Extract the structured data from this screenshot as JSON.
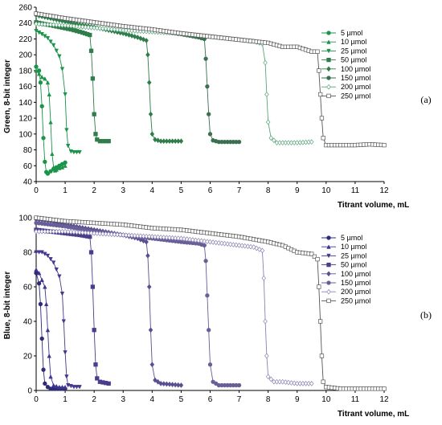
{
  "chart_data": [
    {
      "type": "line",
      "panel_label": "(a)",
      "ylabel": "Green, 8-bit integer",
      "xlabel": "Titrant volume, mL",
      "xlim": [
        0,
        12
      ],
      "ylim": [
        40,
        260
      ],
      "xticks": [
        "0",
        "1",
        "2",
        "3",
        "4",
        "5",
        "6",
        "7",
        "8",
        "9",
        "10",
        "11",
        "12"
      ],
      "yticks": [
        "40",
        "60",
        "80",
        "100",
        "120",
        "140",
        "160",
        "180",
        "200",
        "220",
        "240",
        "260"
      ],
      "legend_position": "right",
      "series": [
        {
          "name": "5 µmol",
          "color": "#1a9448",
          "marker": "circle-filled",
          "points": [
            [
              0,
              185
            ],
            [
              0.1,
              180
            ],
            [
              0.15,
              165
            ],
            [
              0.2,
              135
            ],
            [
              0.25,
              95
            ],
            [
              0.3,
              65
            ],
            [
              0.35,
              52
            ],
            [
              0.4,
              50
            ],
            [
              0.5,
              53
            ],
            [
              0.6,
              56
            ],
            [
              0.7,
              58
            ],
            [
              0.8,
              60
            ],
            [
              0.9,
              62
            ],
            [
              1.0,
              64
            ]
          ]
        },
        {
          "name": "10 µmol",
          "color": "#1a9448",
          "marker": "triangle-filled",
          "points": [
            [
              0,
              180
            ],
            [
              0.1,
              176
            ],
            [
              0.2,
              172
            ],
            [
              0.3,
              170
            ],
            [
              0.4,
              165
            ],
            [
              0.45,
              150
            ],
            [
              0.5,
              115
            ],
            [
              0.55,
              75
            ],
            [
              0.6,
              58
            ],
            [
              0.65,
              54
            ],
            [
              0.7,
              55
            ],
            [
              0.8,
              57
            ],
            [
              0.9,
              58
            ],
            [
              1.0,
              60
            ]
          ]
        },
        {
          "name": "25 µmol",
          "color": "#1a9448",
          "marker": "triangle-down-filled",
          "points": [
            [
              0,
              230
            ],
            [
              0.2,
              226
            ],
            [
              0.4,
              221
            ],
            [
              0.6,
              212
            ],
            [
              0.8,
              198
            ],
            [
              0.9,
              182
            ],
            [
              1.0,
              150
            ],
            [
              1.05,
              105
            ],
            [
              1.1,
              85
            ],
            [
              1.2,
              78
            ],
            [
              1.3,
              77
            ],
            [
              1.5,
              77
            ]
          ]
        },
        {
          "name": "50 µmol",
          "color": "#2e7d4a",
          "marker": "square-filled",
          "points": [
            [
              0,
              241
            ],
            [
              0.4,
              238
            ],
            [
              0.8,
              235
            ],
            [
              1.2,
              232
            ],
            [
              1.6,
              228
            ],
            [
              1.85,
              225
            ],
            [
              1.9,
              205
            ],
            [
              1.95,
              170
            ],
            [
              2.0,
              125
            ],
            [
              2.05,
              100
            ],
            [
              2.1,
              93
            ],
            [
              2.2,
              91
            ],
            [
              2.5,
              91
            ]
          ]
        },
        {
          "name": "100 µmol",
          "color": "#2e7d4a",
          "marker": "diamond-filled",
          "points": [
            [
              0,
              250
            ],
            [
              0.5,
              246
            ],
            [
              1,
              242
            ],
            [
              1.5,
              238
            ],
            [
              2,
              235
            ],
            [
              2.5,
              231
            ],
            [
              3,
              227
            ],
            [
              3.5,
              222
            ],
            [
              3.8,
              218
            ],
            [
              3.85,
              200
            ],
            [
              3.9,
              165
            ],
            [
              3.95,
              125
            ],
            [
              4.0,
              100
            ],
            [
              4.1,
              93
            ],
            [
              4.3,
              91
            ],
            [
              5,
              91
            ]
          ]
        },
        {
          "name": "150 µmol",
          "color": "#3a6f50",
          "marker": "circle-filled",
          "points": [
            [
              0,
              252
            ],
            [
              0.5,
              249
            ],
            [
              1,
              246
            ],
            [
              2,
              241
            ],
            [
              3,
              236
            ],
            [
              4,
              231
            ],
            [
              5,
              226
            ],
            [
              5.6,
              222
            ],
            [
              5.8,
              220
            ],
            [
              5.85,
              195
            ],
            [
              5.9,
              160
            ],
            [
              5.95,
              125
            ],
            [
              6.0,
              100
            ],
            [
              6.1,
              92
            ],
            [
              6.3,
              90
            ],
            [
              7,
              90
            ]
          ]
        },
        {
          "name": "200 µmol",
          "color": "#5aa47a",
          "marker": "diamond-open",
          "points": [
            [
              0,
              239
            ],
            [
              1,
              237
            ],
            [
              2,
              234
            ],
            [
              3,
              231
            ],
            [
              4,
              229
            ],
            [
              5,
              227
            ],
            [
              6,
              223
            ],
            [
              6.5,
              221
            ],
            [
              7,
              219
            ],
            [
              7.5,
              217
            ],
            [
              7.8,
              214
            ],
            [
              7.9,
              190
            ],
            [
              7.95,
              150
            ],
            [
              8.0,
              115
            ],
            [
              8.1,
              95
            ],
            [
              8.3,
              89
            ],
            [
              9,
              89
            ],
            [
              9.5,
              90
            ]
          ]
        },
        {
          "name": "250 µmol",
          "color": "#555555",
          "marker": "square-open",
          "points": [
            [
              0,
              252
            ],
            [
              0.5,
              249
            ],
            [
              1,
              246
            ],
            [
              2,
              241
            ],
            [
              3,
              236
            ],
            [
              4,
              232
            ],
            [
              5,
              227
            ],
            [
              6,
              223
            ],
            [
              7,
              219
            ],
            [
              8,
              215
            ],
            [
              8.5,
              210
            ],
            [
              9,
              210
            ],
            [
              9.5,
              204
            ],
            [
              9.7,
              204
            ],
            [
              9.75,
              180
            ],
            [
              9.8,
              150
            ],
            [
              9.85,
              120
            ],
            [
              9.9,
              95
            ],
            [
              10,
              86
            ],
            [
              10.5,
              86
            ],
            [
              11,
              86
            ],
            [
              11.5,
              87
            ],
            [
              12,
              86
            ]
          ]
        }
      ]
    },
    {
      "type": "line",
      "panel_label": "(b)",
      "ylabel": "Blue, 8-bit integer",
      "xlabel": "Titrant volume, mL",
      "xlim": [
        0,
        12
      ],
      "ylim": [
        0,
        100
      ],
      "xticks": [
        "0",
        "1",
        "2",
        "3",
        "4",
        "5",
        "6",
        "7",
        "8",
        "9",
        "10",
        "11",
        "12"
      ],
      "yticks": [
        "0",
        "20",
        "40",
        "60",
        "80",
        "100"
      ],
      "legend_position": "right",
      "series": [
        {
          "name": "5 µmol",
          "color": "#2e2a78",
          "marker": "circle-filled",
          "points": [
            [
              0,
              68
            ],
            [
              0.1,
              62
            ],
            [
              0.15,
              50
            ],
            [
              0.2,
              30
            ],
            [
              0.25,
              12
            ],
            [
              0.3,
              4
            ],
            [
              0.4,
              2
            ],
            [
              0.5,
              1
            ],
            [
              0.6,
              1
            ],
            [
              0.8,
              1
            ],
            [
              1.0,
              1
            ]
          ]
        },
        {
          "name": "10 µmol",
          "color": "#3d3590",
          "marker": "triangle-filled",
          "points": [
            [
              0,
              70
            ],
            [
              0.1,
              68
            ],
            [
              0.2,
              64
            ],
            [
              0.3,
              60
            ],
            [
              0.35,
              50
            ],
            [
              0.4,
              35
            ],
            [
              0.45,
              20
            ],
            [
              0.5,
              8
            ],
            [
              0.6,
              3
            ],
            [
              0.8,
              2
            ],
            [
              1.0,
              2
            ]
          ]
        },
        {
          "name": "25 µmol",
          "color": "#45398f",
          "marker": "triangle-down-filled",
          "points": [
            [
              0,
              80
            ],
            [
              0.2,
              80
            ],
            [
              0.4,
              78
            ],
            [
              0.6,
              74
            ],
            [
              0.8,
              66
            ],
            [
              0.9,
              56
            ],
            [
              0.95,
              40
            ],
            [
              1.0,
              22
            ],
            [
              1.05,
              8
            ],
            [
              1.1,
              3
            ],
            [
              1.3,
              2
            ],
            [
              1.5,
              2
            ]
          ]
        },
        {
          "name": "50 µmol",
          "color": "#4a3d8a",
          "marker": "square-filled",
          "points": [
            [
              0,
              93
            ],
            [
              0.5,
              92
            ],
            [
              1,
              91
            ],
            [
              1.5,
              90
            ],
            [
              1.85,
              89
            ],
            [
              1.9,
              80
            ],
            [
              1.95,
              60
            ],
            [
              2.0,
              35
            ],
            [
              2.05,
              15
            ],
            [
              2.1,
              7
            ],
            [
              2.2,
              5
            ],
            [
              2.5,
              4
            ]
          ]
        },
        {
          "name": "100 µmol",
          "color": "#5a4e92",
          "marker": "diamond-filled",
          "points": [
            [
              0,
              99
            ],
            [
              0.5,
              98
            ],
            [
              1,
              96
            ],
            [
              2,
              93
            ],
            [
              3,
              90
            ],
            [
              3.5,
              88
            ],
            [
              3.8,
              86
            ],
            [
              3.85,
              78
            ],
            [
              3.9,
              60
            ],
            [
              3.95,
              35
            ],
            [
              4.0,
              15
            ],
            [
              4.1,
              6
            ],
            [
              4.3,
              4
            ],
            [
              5,
              3
            ]
          ]
        },
        {
          "name": "150 µmol",
          "color": "#6a5e98",
          "marker": "circle-filled",
          "points": [
            [
              0,
              97
            ],
            [
              1,
              95
            ],
            [
              2,
              92
            ],
            [
              3,
              90
            ],
            [
              4,
              88
            ],
            [
              5,
              86
            ],
            [
              5.6,
              85
            ],
            [
              5.8,
              84
            ],
            [
              5.85,
              75
            ],
            [
              5.9,
              55
            ],
            [
              5.95,
              35
            ],
            [
              6.0,
              15
            ],
            [
              6.1,
              5
            ],
            [
              6.3,
              3
            ],
            [
              7,
              3
            ]
          ]
        },
        {
          "name": "200 µmol",
          "color": "#8a82b0",
          "marker": "diamond-open",
          "points": [
            [
              0,
              92
            ],
            [
              1,
              92
            ],
            [
              2,
              91
            ],
            [
              3,
              90
            ],
            [
              4,
              89
            ],
            [
              5,
              88
            ],
            [
              6,
              86
            ],
            [
              7,
              84
            ],
            [
              7.5,
              83
            ],
            [
              7.8,
              81
            ],
            [
              7.85,
              65
            ],
            [
              7.9,
              40
            ],
            [
              7.95,
              20
            ],
            [
              8.0,
              8
            ],
            [
              8.2,
              5
            ],
            [
              8.5,
              5
            ],
            [
              9,
              4
            ],
            [
              9.5,
              4
            ]
          ]
        },
        {
          "name": "250 µmol",
          "color": "#555555",
          "marker": "square-open",
          "points": [
            [
              0,
              100
            ],
            [
              1,
              98
            ],
            [
              2,
              97
            ],
            [
              3,
              96
            ],
            [
              4,
              94
            ],
            [
              5,
              93
            ],
            [
              6,
              91
            ],
            [
              7,
              89
            ],
            [
              8,
              86
            ],
            [
              8.5,
              84
            ],
            [
              9,
              80
            ],
            [
              9.5,
              79
            ],
            [
              9.7,
              76
            ],
            [
              9.75,
              60
            ],
            [
              9.8,
              40
            ],
            [
              9.85,
              20
            ],
            [
              9.9,
              5
            ],
            [
              10,
              2
            ],
            [
              10.5,
              1
            ],
            [
              11,
              1
            ],
            [
              12,
              1
            ]
          ]
        }
      ]
    }
  ]
}
